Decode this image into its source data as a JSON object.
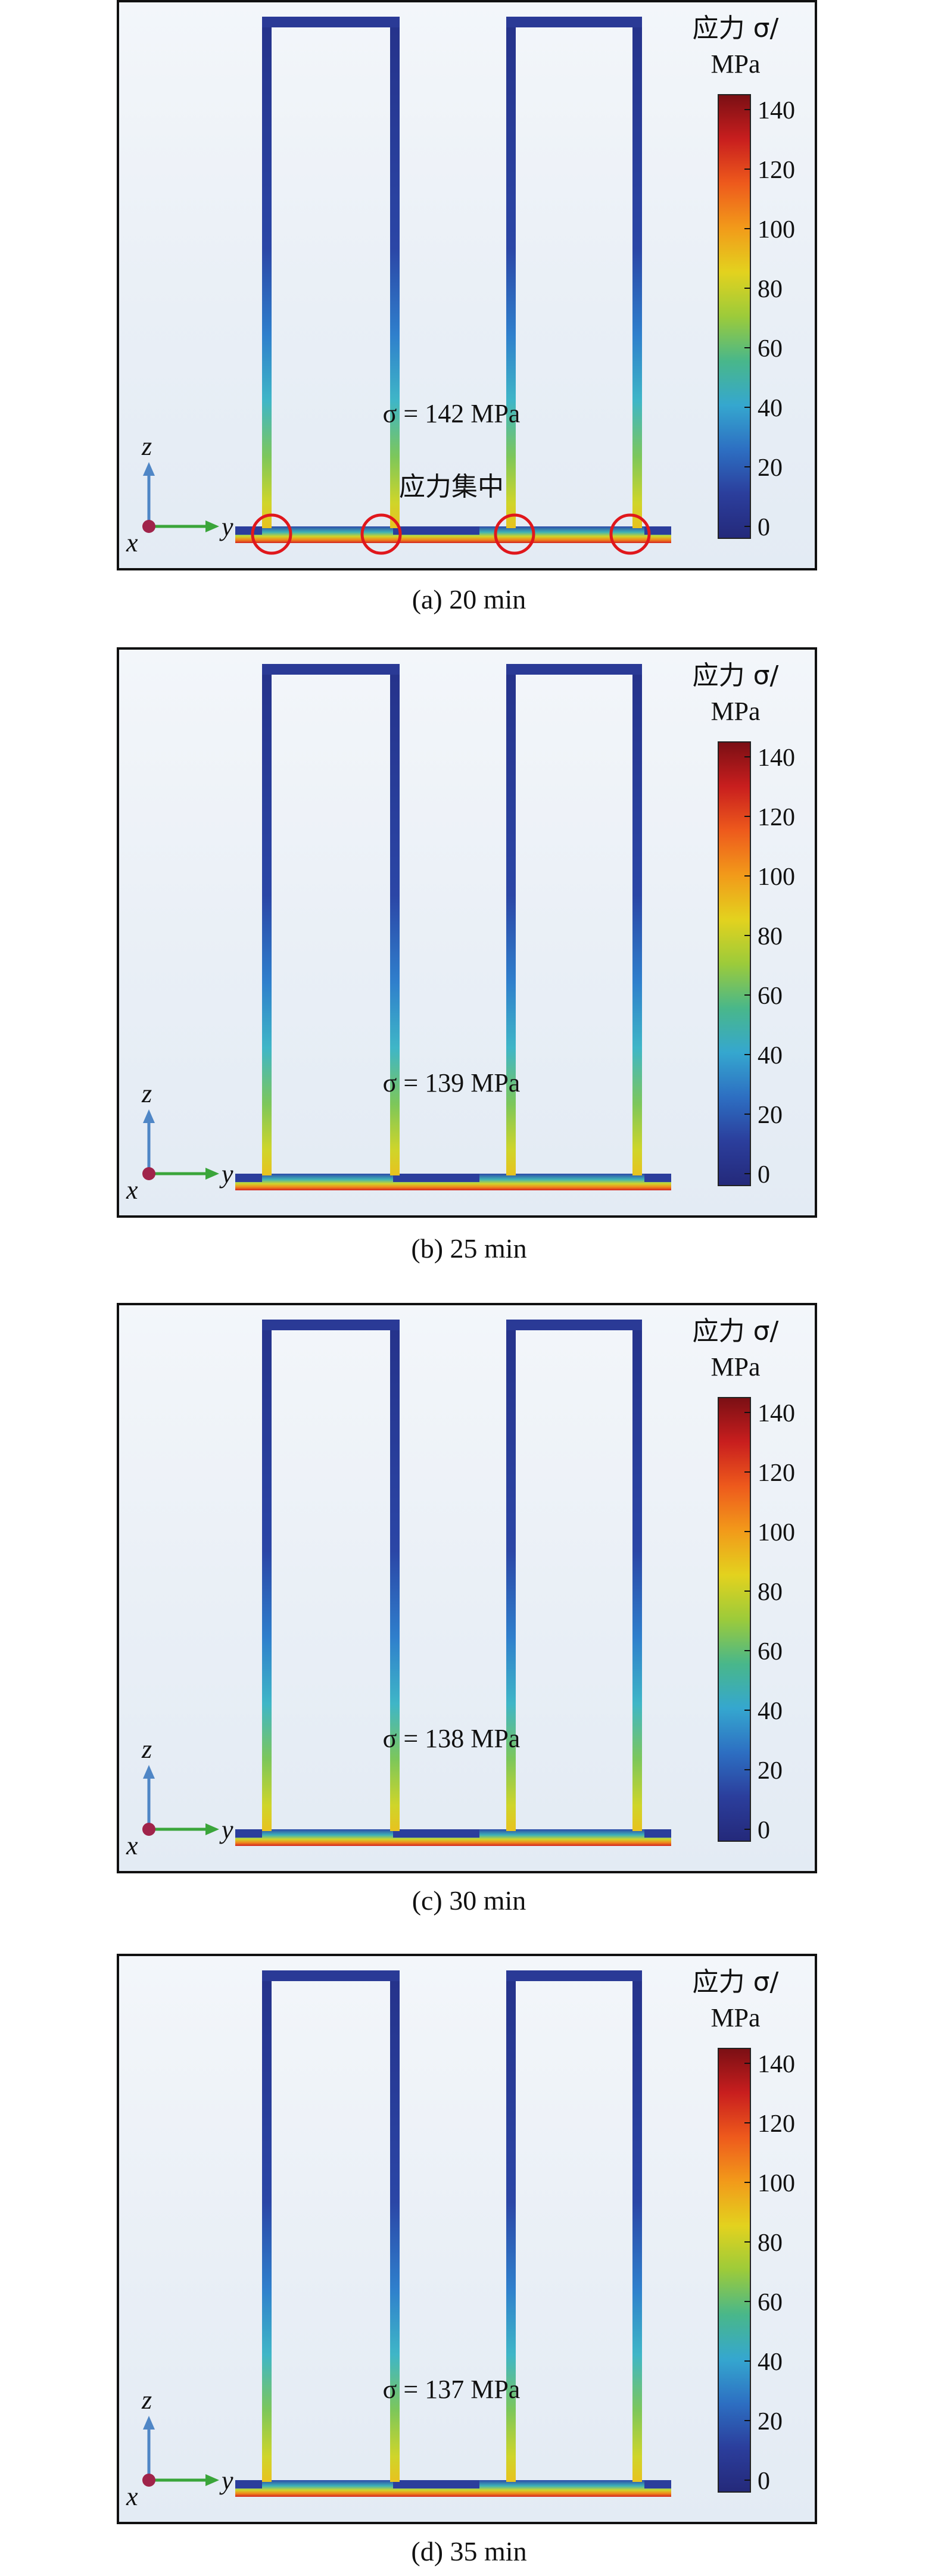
{
  "colorbar": {
    "title_line1": "应力 σ/",
    "title_line2": "MPa",
    "ticks": [
      "140",
      "120",
      "100",
      "80",
      "60",
      "40",
      "20",
      "0"
    ],
    "colors": [
      "#7a0f14",
      "#c81e1e",
      "#ee5a1c",
      "#f29a1a",
      "#e3d21e",
      "#9ccb3a",
      "#49b78a",
      "#35a7cf",
      "#2d6fc2",
      "#2b3e9c",
      "#24297a"
    ]
  },
  "axes": {
    "z": "z",
    "y": "y",
    "x": "x"
  },
  "annotation": "应力集中",
  "panels": [
    {
      "caption": "(a) 20 min",
      "sigma_text": "σ = 142 MPa",
      "max_stress_mpa": 142,
      "show_concentration": true
    },
    {
      "caption": "(b) 25 min",
      "sigma_text": "σ = 139 MPa",
      "max_stress_mpa": 139,
      "show_concentration": false
    },
    {
      "caption": "(c) 30 min",
      "sigma_text": "σ = 138 MPa",
      "max_stress_mpa": 138,
      "show_concentration": false
    },
    {
      "caption": "(d) 35 min",
      "sigma_text": "σ = 137 MPa",
      "max_stress_mpa": 137,
      "show_concentration": false
    }
  ]
}
